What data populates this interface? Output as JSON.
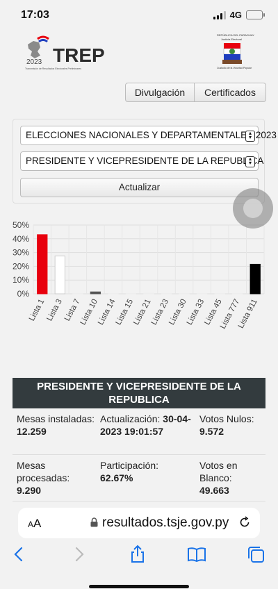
{
  "status_bar": {
    "time": "17:03",
    "network": "4G"
  },
  "header": {
    "trep_brand": "TREP",
    "trep_year": "2023",
    "trep_subtitle": "Transmisión de Resultados Electorales Preliminares",
    "tsje_line1": "REPÚBLICA DEL PARAGUAY",
    "tsje_line2": "Justicia Electoral",
    "tsje_line3": "Custodio de la Voluntad Popular"
  },
  "nav": {
    "divulgacion_label": "Divulgación",
    "certificados_label": "Certificados"
  },
  "form": {
    "election_select": "ELECCIONES NACIONALES Y DEPARTAMENTALES 2023",
    "position_select": "PRESIDENTE Y VICEPRESIDENTE DE LA REPUBLICA",
    "update_label": "Actualizar"
  },
  "chart_data": {
    "type": "bar",
    "categories": [
      "Lista 1",
      "Lista 3",
      "Lista 7",
      "Lista 10",
      "Lista 14",
      "Lista 15",
      "Lista 21",
      "Lista 23",
      "Lista 30",
      "Lista 33",
      "Lista 45",
      "Lista 777",
      "Lista 911"
    ],
    "values": [
      43.0,
      27.5,
      0.2,
      1.4,
      0.2,
      0.3,
      0.5,
      0.3,
      0.2,
      0.2,
      0.2,
      0.2,
      21.5
    ],
    "colors": [
      "#e8000d",
      "#ffffff",
      "#eeeeee",
      "#555555",
      "#eeeeee",
      "#eeeeee",
      "#eeeeee",
      "#eeeeee",
      "#eeeeee",
      "#eeeeee",
      "#eeeeee",
      "#eeeeee",
      "#000000"
    ],
    "ylim": [
      0,
      50
    ],
    "yticks": [
      "0%",
      "10%",
      "20%",
      "30%",
      "40%",
      "50%"
    ],
    "grid": true
  },
  "results": {
    "title": "PRESIDENTE Y VICEPRESIDENTE DE LA REPUBLICA",
    "mesas_instaladas_label": "Mesas instaladas:",
    "mesas_instaladas_value": "12.259",
    "actualizacion_label": "Actualización:",
    "actualizacion_value": "30-04-2023 19:01:57",
    "votos_nulos_label": "Votos Nulos:",
    "votos_nulos_value": "9.572",
    "mesas_procesadas_label": "Mesas procesadas:",
    "mesas_procesadas_value": "9.290",
    "participacion_label": "Participación:",
    "participacion_value": "62.67%",
    "votos_blanco_label": "Votos en Blanco:",
    "votos_blanco_value": "49.663"
  },
  "browser": {
    "aa_label": "AA",
    "url": "resultados.tsje.gov.py"
  }
}
